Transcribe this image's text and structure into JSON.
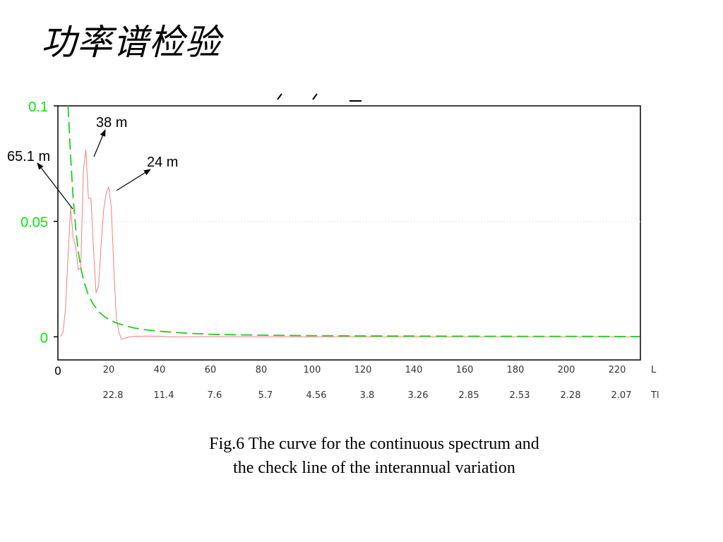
{
  "title": "功率谱检验",
  "caption": {
    "line1": "Fig.6    The curve for the continuous spectrum and",
    "line2": "the check line of the interannual variation"
  },
  "colors": {
    "spectrum": "#f08080",
    "check_line": "#22cc22",
    "ytick": "#00ee00"
  },
  "chart_data": {
    "type": "line",
    "xlim": [
      0,
      230
    ],
    "ylim": [
      -0.01,
      0.1
    ],
    "yticks": [
      {
        "value": 0.1,
        "label": "0.1"
      },
      {
        "value": 0.05,
        "label": "0.05"
      },
      {
        "value": 0,
        "label": "0"
      }
    ],
    "x_ticks_L": [
      {
        "value": 0,
        "label": "0"
      },
      {
        "value": 20,
        "label": "20"
      },
      {
        "value": 40,
        "label": "40"
      },
      {
        "value": 60,
        "label": "60"
      },
      {
        "value": 80,
        "label": "80"
      },
      {
        "value": 100,
        "label": "100"
      },
      {
        "value": 120,
        "label": "120"
      },
      {
        "value": 140,
        "label": "140"
      },
      {
        "value": 160,
        "label": "160"
      },
      {
        "value": 180,
        "label": "180"
      },
      {
        "value": 200,
        "label": "200"
      },
      {
        "value": 220,
        "label": "220"
      }
    ],
    "x_ticks_T": [
      {
        "value": 20,
        "label": "22.8"
      },
      {
        "value": 40,
        "label": "11.4"
      },
      {
        "value": 60,
        "label": "7.6"
      },
      {
        "value": 80,
        "label": "5.7"
      },
      {
        "value": 100,
        "label": "4.56"
      },
      {
        "value": 120,
        "label": "3.8"
      },
      {
        "value": 140,
        "label": "3.26"
      },
      {
        "value": 160,
        "label": "2.85"
      },
      {
        "value": 180,
        "label": "2.53"
      },
      {
        "value": 200,
        "label": "2.28"
      },
      {
        "value": 220,
        "label": "2.07"
      }
    ],
    "x_row_label_1": "L",
    "x_row_label_2": "Tl",
    "grid": "dotted horizontal at 0.05",
    "series": [
      {
        "style": "solid",
        "x": [
          1,
          2,
          3,
          4,
          5,
          6,
          7,
          8,
          9,
          10,
          11,
          12,
          13,
          14,
          15,
          16,
          17,
          18,
          19,
          20,
          21,
          22,
          23,
          24,
          25,
          26,
          28,
          30,
          35,
          40,
          45,
          50,
          60,
          80,
          100,
          120,
          150,
          180,
          200,
          220,
          229
        ],
        "y": [
          0,
          0.002,
          0.012,
          0.035,
          0.056,
          0.043,
          0.039,
          0.029,
          0.03,
          0.072,
          0.081,
          0.06,
          0.06,
          0.038,
          0.019,
          0.022,
          0.04,
          0.055,
          0.062,
          0.065,
          0.056,
          0.03,
          0.008,
          0.002,
          -0.001,
          -0.0008,
          0,
          0.0002,
          0.0003,
          0.0002,
          0,
          0,
          0.0001,
          0,
          0,
          0,
          0,
          0,
          0,
          0,
          0
        ]
      },
      {
        "style": "dashed",
        "x": [
          4,
          5,
          6,
          7,
          8,
          9,
          10,
          12,
          14,
          16,
          18,
          20,
          23,
          26,
          30,
          35,
          40,
          50,
          60,
          80,
          100,
          120,
          150,
          180,
          200,
          229
        ],
        "y": [
          0.1,
          0.078,
          0.06,
          0.047,
          0.037,
          0.03,
          0.025,
          0.018,
          0.014,
          0.011,
          0.009,
          0.0075,
          0.006,
          0.005,
          0.0038,
          0.003,
          0.0024,
          0.0016,
          0.0011,
          0.0007,
          0.0005,
          0.0004,
          0.0003,
          0.0002,
          0.0002,
          0.0001
        ]
      }
    ],
    "annotations": [
      {
        "text": "38 m",
        "x": 12,
        "y": 0.078
      },
      {
        "text": "65.1 m",
        "x": 5.5,
        "y": 0.057
      },
      {
        "text": "24 m",
        "x": 20,
        "y": 0.064
      }
    ]
  }
}
